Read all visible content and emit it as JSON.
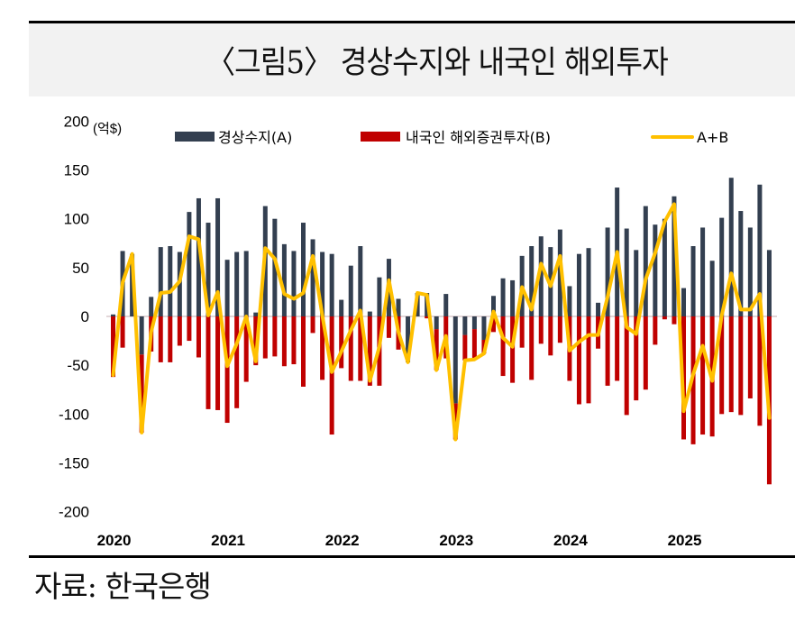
{
  "header": {
    "title": "〈그림5〉 경상수지와 내국인 해외투자"
  },
  "footer": {
    "source": "자료: 한국은행"
  },
  "colors": {
    "series_a": "#333f50",
    "series_b": "#c00000",
    "line": "#ffc000",
    "zero_line": "#d9c8cc",
    "title_band": "#f2f2f2"
  },
  "chart_data": {
    "type": "bar",
    "title": "〈그림5〉 경상수지와 내국인 해외투자",
    "unit_label": "(억$)",
    "xlabel": "",
    "ylabel": "(억$)",
    "ylim": [
      -200,
      200
    ],
    "yticks": [
      200,
      150,
      100,
      50,
      0,
      -50,
      -100,
      -150,
      -200
    ],
    "ytick_labels": [
      "200",
      "150",
      "100",
      "50",
      "0",
      "-50",
      "-100",
      "-150",
      "-200"
    ],
    "grid": false,
    "legend_position": "top",
    "start_period": "2020-01",
    "frequency": "monthly",
    "xtick_labels": [
      "2020",
      "2021",
      "2022",
      "2023",
      "2024",
      "2025"
    ],
    "xtick_index": [
      0,
      12,
      24,
      36,
      48,
      60
    ],
    "series": [
      {
        "name": "경상수지(A)",
        "kind": "bar",
        "values": [
          2,
          67,
          64,
          -39,
          20,
          71,
          72,
          66,
          107,
          121,
          96,
          121,
          58,
          66,
          67,
          4,
          113,
          100,
          74,
          67,
          96,
          79,
          66,
          64,
          17,
          52,
          72,
          5,
          40,
          59,
          18,
          -47,
          24,
          24,
          -13,
          23,
          -89,
          -19,
          -13,
          -24,
          21,
          39,
          37,
          62,
          72,
          82,
          71,
          89,
          31,
          64,
          70,
          14,
          91,
          132,
          90,
          68,
          113,
          94,
          100,
          123,
          29,
          72,
          91,
          57,
          101,
          142,
          108,
          91,
          135,
          68
        ]
      },
      {
        "name": "내국인 해외증권투자(B)",
        "kind": "bar",
        "values": [
          -62,
          -32,
          0,
          -80,
          -36,
          -47,
          -47,
          -30,
          -25,
          -42,
          -95,
          -96,
          -109,
          -94,
          -67,
          -50,
          -43,
          -41,
          -51,
          -49,
          -72,
          -17,
          -65,
          -121,
          -53,
          -66,
          -66,
          -71,
          -71,
          -22,
          -34,
          0,
          0,
          -2,
          -42,
          -43,
          -37,
          -26,
          -31,
          -14,
          -16,
          -61,
          -68,
          -32,
          -65,
          -28,
          -40,
          -27,
          -66,
          -90,
          -89,
          -33,
          -71,
          -66,
          -101,
          -86,
          -75,
          -29,
          -3,
          -8,
          -126,
          -131,
          -121,
          -123,
          -100,
          -98,
          -101,
          -84,
          -112,
          -172
        ]
      },
      {
        "name": "A+B",
        "kind": "line",
        "derived": "sum of 경상수지(A) and 내국인 해외증권투자(B)"
      }
    ]
  }
}
